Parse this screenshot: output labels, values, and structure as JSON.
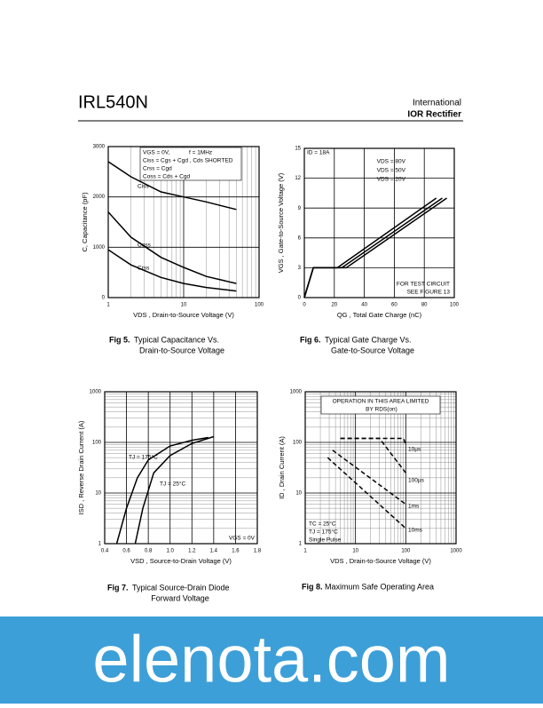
{
  "header": {
    "title": "IRL540N",
    "logo": [
      "International",
      "IOR Rectifier"
    ]
  },
  "captions": [
    {
      "label": "Fig 5.",
      "text": [
        "Typical Capacitance Vs.",
        "Drain-to-Source Voltage"
      ]
    },
    {
      "label": "Fig 6.",
      "text": [
        "Typical Gate Charge Vs.",
        "Gate-to-Source Voltage"
      ]
    },
    {
      "label": "Fig 7.",
      "text": [
        "Typical Source-Drain Diode",
        "Forward Voltage"
      ]
    },
    {
      "label": "Fig 8.",
      "text": [
        "Maximum Safe Operating Area"
      ]
    }
  ],
  "chart_data": [
    {
      "type": "line",
      "x_label": "VDS , Drain-to-Source Voltage (V)",
      "y_label": "C, Capacitance (pF)",
      "xscale": "log",
      "xlim": [
        1,
        100
      ],
      "xticks": [
        1,
        10,
        100
      ],
      "xminor": [
        2,
        3,
        4,
        5,
        6,
        7,
        8,
        9,
        20,
        30,
        40,
        50,
        60,
        70,
        80,
        90
      ],
      "ylim": [
        0,
        3000
      ],
      "yticks": [
        0,
        1000,
        2000,
        3000
      ],
      "grid": true,
      "line_style": "solid",
      "annotations": [
        "VGS = 0V,",
        "f = 1MHz",
        "Ciss = Cgs + Cgd , Cds SHORTED",
        "Crss = Cgd",
        "Coss = Cds + Cgd"
      ],
      "series": [
        {
          "name": "Ciss",
          "color": "#000000",
          "x": [
            1,
            2,
            5,
            10,
            20,
            50
          ],
          "values": [
            2700,
            2400,
            2100,
            2000,
            1900,
            1750
          ]
        },
        {
          "name": "Coss",
          "color": "#000000",
          "x": [
            1,
            2,
            5,
            10,
            20,
            50
          ],
          "values": [
            1700,
            1200,
            800,
            600,
            420,
            280
          ]
        },
        {
          "name": "Crss",
          "color": "#000000",
          "x": [
            1,
            2,
            5,
            10,
            20,
            50
          ],
          "values": [
            950,
            650,
            400,
            280,
            200,
            130
          ]
        }
      ]
    },
    {
      "type": "line",
      "x_label": "QG , Total Gate Charge (nC)",
      "y_label": "VGS , Gate-to-Source Voltage (V)",
      "xscale": "linear",
      "xlim": [
        0,
        100
      ],
      "xticks": [
        0,
        20,
        40,
        60,
        80,
        100
      ],
      "ylim": [
        0,
        15
      ],
      "yticks": [
        0,
        3,
        6,
        9,
        12,
        15
      ],
      "grid": true,
      "line_style": "solid",
      "annotations": [
        "ID = 18A",
        "FOR TEST CIRCUIT",
        "SEE FIGURE 13"
      ],
      "series": [
        {
          "name": "VDS = 80V",
          "color": "#000000",
          "x": [
            0,
            6,
            28,
            95
          ],
          "values": [
            0,
            3,
            3,
            10
          ]
        },
        {
          "name": "VDS = 50V",
          "color": "#000000",
          "x": [
            0,
            6,
            25,
            92
          ],
          "values": [
            0,
            3,
            3,
            10
          ]
        },
        {
          "name": "VDS = 20V",
          "color": "#000000",
          "x": [
            0,
            6,
            22,
            88
          ],
          "values": [
            0,
            3,
            3,
            10
          ]
        }
      ]
    },
    {
      "type": "line",
      "x_label": "VSD , Source-to-Drain Voltage (V)",
      "y_label": "ISD , Reverse Drain Current (A)",
      "xscale": "linear",
      "xlim": [
        0.4,
        1.8
      ],
      "xticks": [
        0.4,
        0.6,
        0.8,
        {
          "value": 1,
          "label": "1.0"
        },
        1.2,
        1.4,
        1.6,
        1.8
      ],
      "yscale": "log",
      "ylim": [
        1,
        1000
      ],
      "yticks": [
        1,
        10,
        100,
        1000
      ],
      "yminor": [
        2,
        3,
        4,
        5,
        6,
        7,
        8,
        9,
        20,
        30,
        40,
        50,
        60,
        70,
        80,
        90,
        200,
        300,
        400,
        500,
        600,
        700,
        800,
        900
      ],
      "grid": true,
      "line_style": "solid",
      "annotations": [
        "VGS = 0V"
      ],
      "series": [
        {
          "name": "TJ = 175°C",
          "color": "#000000",
          "x": [
            0.51,
            0.6,
            0.7,
            0.8,
            1.0,
            1.2,
            1.35
          ],
          "values": [
            1,
            5,
            20,
            45,
            85,
            110,
            125
          ]
        },
        {
          "name": "TJ = 25°C",
          "color": "#000000",
          "x": [
            0.68,
            0.75,
            0.85,
            1.0,
            1.2,
            1.4
          ],
          "values": [
            1,
            5,
            25,
            55,
            95,
            130
          ]
        }
      ]
    },
    {
      "type": "line",
      "x_label": "VDS , Drain-to-Source Voltage (V)",
      "y_label": "ID , Drain Current (A)",
      "xscale": "log",
      "xlim": [
        1,
        1000
      ],
      "xticks": [
        1,
        10,
        100,
        1000
      ],
      "xminor": [
        2,
        3,
        4,
        5,
        6,
        7,
        8,
        9,
        20,
        30,
        40,
        50,
        60,
        70,
        80,
        90,
        200,
        300,
        400,
        500,
        600,
        700,
        800,
        900
      ],
      "yscale": "log",
      "ylim": [
        1,
        1000
      ],
      "yticks": [
        1,
        10,
        100,
        1000
      ],
      "yminor": [
        2,
        3,
        4,
        5,
        6,
        7,
        8,
        9,
        20,
        30,
        40,
        50,
        60,
        70,
        80,
        90,
        200,
        300,
        400,
        500,
        600,
        700,
        800,
        900
      ],
      "grid": true,
      "line_style": "dashed",
      "annotations": [
        "OPERATION IN THIS AREA LIMITED",
        "BY RDS(on)",
        "TC = 25°C",
        "TJ = 175°C",
        "Single Pulse"
      ],
      "series": [
        {
          "name": "10µs",
          "color": "#000000",
          "x": [
            5,
            90,
            100
          ],
          "values": [
            120,
            120,
            90
          ]
        },
        {
          "name": "100µs",
          "color": "#000000",
          "x": [
            5,
            30,
            100
          ],
          "values": [
            120,
            120,
            25
          ]
        },
        {
          "name": "1ms",
          "color": "#000000",
          "x": [
            3.5,
            100
          ],
          "values": [
            70,
            6
          ]
        },
        {
          "name": "10ms",
          "color": "#000000",
          "x": [
            2.8,
            100
          ],
          "values": [
            50,
            2
          ]
        }
      ]
    }
  ],
  "footer": {
    "brand": "elenota.com"
  }
}
